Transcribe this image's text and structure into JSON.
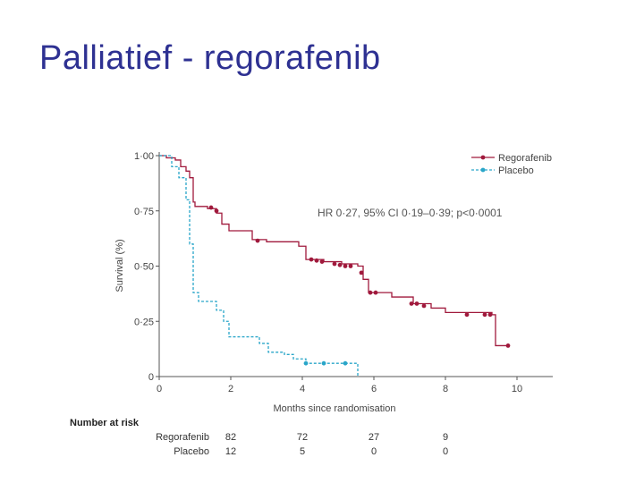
{
  "slide": {
    "title": "Palliatief - regorafenib"
  },
  "colors": {
    "title": "#2e3192",
    "regorafenib": "#a0193c",
    "placebo": "#2aa6c9",
    "axis": "#555555"
  },
  "chart_data": {
    "type": "line",
    "subtype": "kaplan-meier",
    "xlabel": "Months since randomisation",
    "ylabel": "Survival (%)",
    "xlim": [
      0,
      11
    ],
    "ylim": [
      0,
      1
    ],
    "xticks": [
      0,
      2,
      4,
      6,
      8,
      10
    ],
    "xtick_labels": [
      "0",
      "2",
      "4",
      "6",
      "8",
      "10"
    ],
    "yticks": [
      0,
      0.25,
      0.5,
      0.75,
      1
    ],
    "ytick_labels": [
      "0",
      "0·25",
      "0·50",
      "0·75",
      "1·00"
    ],
    "annotation": "HR 0·27, 95% CI 0·19–0·39; p<0·0001",
    "legend_position": "top-right",
    "series": [
      {
        "name": "Regorafenib",
        "color": "#a0193c",
        "marker": "circle",
        "steps": [
          [
            0,
            1.0
          ],
          [
            0.2,
            0.99
          ],
          [
            0.45,
            0.98
          ],
          [
            0.6,
            0.95
          ],
          [
            0.75,
            0.93
          ],
          [
            0.85,
            0.9
          ],
          [
            0.95,
            0.79
          ],
          [
            1.0,
            0.77
          ],
          [
            1.35,
            0.76
          ],
          [
            1.6,
            0.74
          ],
          [
            1.75,
            0.69
          ],
          [
            1.95,
            0.66
          ],
          [
            2.6,
            0.62
          ],
          [
            3.0,
            0.61
          ],
          [
            3.9,
            0.59
          ],
          [
            4.1,
            0.53
          ],
          [
            4.6,
            0.52
          ],
          [
            5.1,
            0.51
          ],
          [
            5.55,
            0.5
          ],
          [
            5.7,
            0.44
          ],
          [
            5.85,
            0.38
          ],
          [
            6.5,
            0.36
          ],
          [
            7.1,
            0.33
          ],
          [
            7.6,
            0.31
          ],
          [
            8.0,
            0.29
          ],
          [
            9.3,
            0.28
          ],
          [
            9.4,
            0.14
          ],
          [
            9.8,
            0.14
          ]
        ],
        "censored": [
          [
            1.45,
            0.765
          ],
          [
            1.6,
            0.75
          ],
          [
            2.75,
            0.615
          ],
          [
            4.25,
            0.53
          ],
          [
            4.4,
            0.525
          ],
          [
            4.55,
            0.52
          ],
          [
            4.9,
            0.51
          ],
          [
            5.05,
            0.505
          ],
          [
            5.2,
            0.5
          ],
          [
            5.35,
            0.5
          ],
          [
            5.65,
            0.47
          ],
          [
            5.9,
            0.38
          ],
          [
            6.05,
            0.38
          ],
          [
            7.05,
            0.33
          ],
          [
            7.2,
            0.33
          ],
          [
            7.4,
            0.32
          ],
          [
            8.6,
            0.28
          ],
          [
            9.1,
            0.28
          ],
          [
            9.25,
            0.28
          ],
          [
            9.75,
            0.14
          ]
        ]
      },
      {
        "name": "Placebo",
        "color": "#2aa6c9",
        "marker": "circle",
        "steps": [
          [
            0,
            1.0
          ],
          [
            0.35,
            0.95
          ],
          [
            0.55,
            0.9
          ],
          [
            0.75,
            0.8
          ],
          [
            0.85,
            0.6
          ],
          [
            0.95,
            0.38
          ],
          [
            1.1,
            0.34
          ],
          [
            1.6,
            0.3
          ],
          [
            1.8,
            0.25
          ],
          [
            1.95,
            0.18
          ],
          [
            2.8,
            0.15
          ],
          [
            3.05,
            0.11
          ],
          [
            3.5,
            0.1
          ],
          [
            3.75,
            0.08
          ],
          [
            4.1,
            0.06
          ],
          [
            5.5,
            0.06
          ],
          [
            5.55,
            0
          ]
        ],
        "censored": [
          [
            4.1,
            0.06
          ],
          [
            4.6,
            0.06
          ],
          [
            5.2,
            0.06
          ]
        ]
      }
    ]
  },
  "risk_table": {
    "heading": "Number at risk",
    "columns": [
      2,
      4,
      6,
      8
    ],
    "rows": [
      {
        "label": "Regorafenib",
        "values": [
          "82",
          "72",
          "27",
          "9"
        ]
      },
      {
        "label": "Placebo",
        "values": [
          "12",
          "5",
          "0",
          "0"
        ]
      }
    ]
  }
}
